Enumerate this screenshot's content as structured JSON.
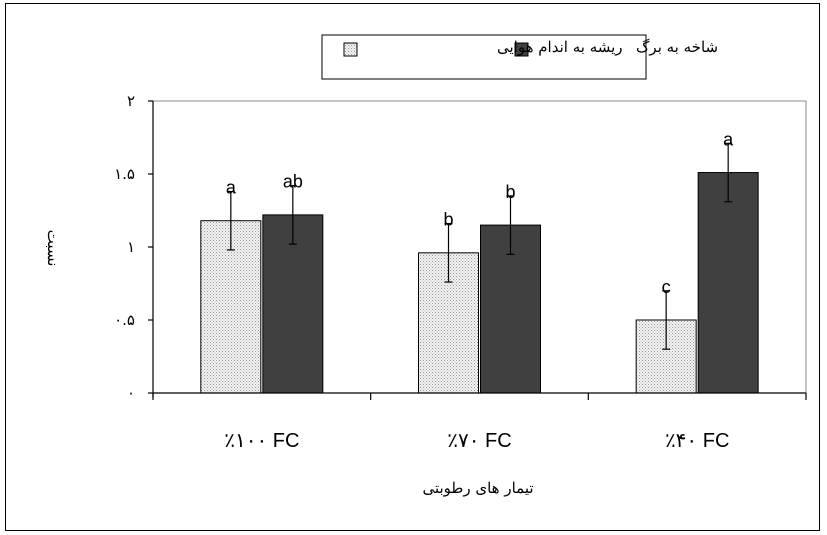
{
  "chart_data": {
    "type": "bar",
    "categories": [
      "٪۱۰۰ FC",
      "٪۷۰ FC",
      "٪۴۰ FC"
    ],
    "xlabel": "تیمار های رطوبتی",
    "ylabel": "نسبت",
    "ylim": [
      0,
      2
    ],
    "yticks": [
      {
        "value": 0,
        "label": "۰"
      },
      {
        "value": 0.5,
        "label": "۰.۵"
      },
      {
        "value": 1,
        "label": "۱"
      },
      {
        "value": 1.5,
        "label": "۱.۵"
      },
      {
        "value": 2,
        "label": "۲"
      }
    ],
    "legend_position": "top-center",
    "series": [
      {
        "name": "ریشه به اندام هوایی",
        "color": "#d9d9d9",
        "pattern": "dotted-light",
        "values": [
          1.18,
          0.96,
          0.5
        ],
        "errors": [
          0.2,
          0.2,
          0.2
        ],
        "letters": [
          "a",
          "b",
          "c"
        ]
      },
      {
        "name": "شاخه به برگ",
        "color": "#404040",
        "values": [
          1.22,
          1.15,
          1.51
        ],
        "errors": [
          0.2,
          0.2,
          0.2
        ],
        "letters": [
          "ab",
          "b",
          "a"
        ]
      }
    ]
  }
}
